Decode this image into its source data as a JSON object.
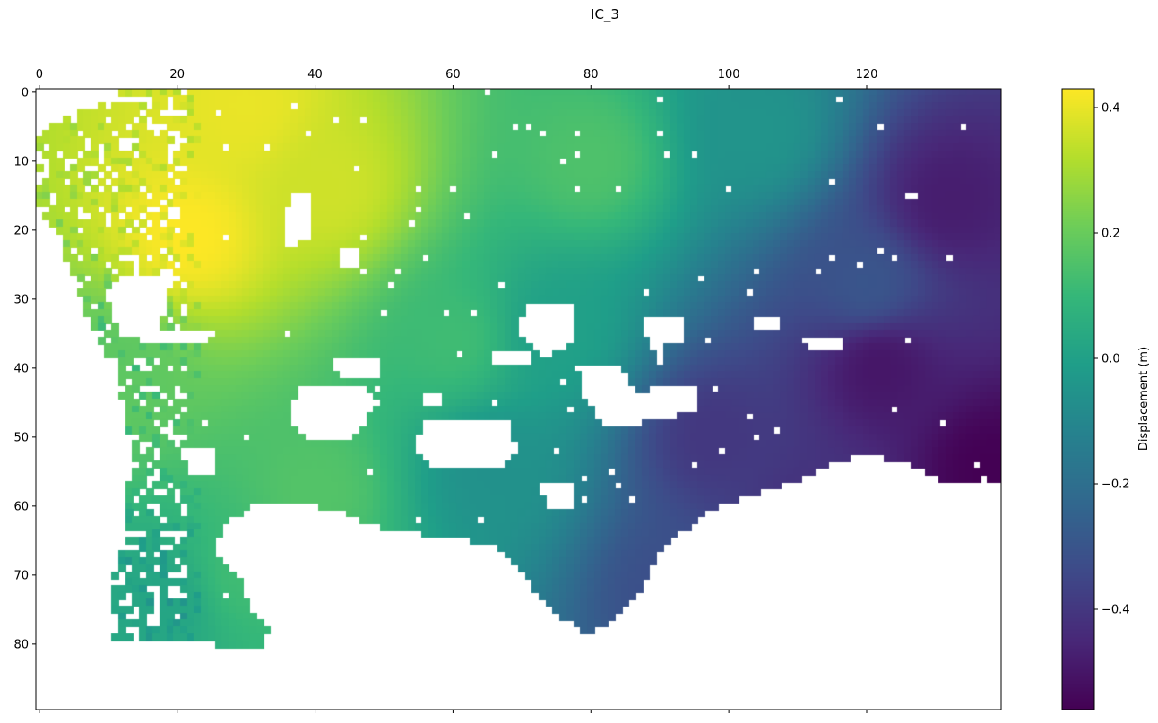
{
  "chart_data": {
    "type": "heatmap",
    "title": "IC_3",
    "colorbar": {
      "label": "Displacement (m)",
      "range": [
        -0.56,
        0.43
      ],
      "ticks": [
        0.4,
        0.2,
        0.0,
        -0.2,
        -0.4
      ],
      "tick_labels": [
        "0.4",
        "0.2",
        "0.0",
        "−0.2",
        "−0.4"
      ],
      "colormap": "viridis"
    },
    "x_axis": {
      "position": "top",
      "range": [
        -0.5,
        139.5
      ],
      "ticks": [
        0,
        20,
        40,
        60,
        80,
        100,
        120
      ],
      "tick_labels": [
        "0",
        "20",
        "40",
        "60",
        "80",
        "100",
        "120"
      ]
    },
    "y_axis": {
      "inverted": true,
      "range": [
        -0.5,
        89.5
      ],
      "ticks": [
        0,
        10,
        20,
        30,
        40,
        50,
        60,
        70,
        80
      ],
      "tick_labels": [
        "0",
        "10",
        "20",
        "30",
        "40",
        "50",
        "60",
        "70",
        "80"
      ]
    },
    "grid_size": {
      "columns": 140,
      "rows": 90
    },
    "field_centers": [
      {
        "col": 22,
        "row": 21,
        "value": 0.43
      },
      {
        "col": 30,
        "row": 2,
        "value": 0.4
      },
      {
        "col": 42,
        "row": 14,
        "value": 0.36
      },
      {
        "col": 12,
        "row": 40,
        "value": 0.18
      },
      {
        "col": 18,
        "row": 74,
        "value": 0.02
      },
      {
        "col": 132,
        "row": 16,
        "value": -0.48
      },
      {
        "col": 122,
        "row": 40,
        "value": -0.5
      },
      {
        "col": 138,
        "row": 55,
        "value": -0.56
      },
      {
        "col": 98,
        "row": 50,
        "value": -0.4
      },
      {
        "col": 112,
        "row": 62,
        "value": -0.42
      },
      {
        "col": 92,
        "row": 72,
        "value": -0.32
      },
      {
        "col": 80,
        "row": 10,
        "value": 0.15
      },
      {
        "col": 104,
        "row": 6,
        "value": -0.05
      },
      {
        "col": 66,
        "row": 55,
        "value": -0.06
      },
      {
        "col": 60,
        "row": 36,
        "value": 0.12
      },
      {
        "col": 40,
        "row": 58,
        "value": 0.16
      },
      {
        "col": 30,
        "row": 70,
        "value": 0.12
      },
      {
        "col": 75,
        "row": 35,
        "value": 0.0
      },
      {
        "col": 120,
        "row": 28,
        "value": -0.3
      }
    ],
    "valid_region_polygon": [
      [
        13,
        0
      ],
      [
        140,
        0
      ],
      [
        140,
        57
      ],
      [
        132,
        57
      ],
      [
        126,
        54
      ],
      [
        120,
        53
      ],
      [
        114,
        55
      ],
      [
        110,
        57
      ],
      [
        104,
        59
      ],
      [
        98,
        61
      ],
      [
        94,
        64
      ],
      [
        90,
        68
      ],
      [
        88,
        72
      ],
      [
        85,
        76
      ],
      [
        83,
        78
      ],
      [
        80,
        79
      ],
      [
        77,
        77
      ],
      [
        74,
        75
      ],
      [
        72,
        72
      ],
      [
        70,
        69
      ],
      [
        68,
        67
      ],
      [
        66,
        66
      ],
      [
        60,
        65
      ],
      [
        52,
        64
      ],
      [
        48,
        63
      ],
      [
        44,
        61
      ],
      [
        38,
        60
      ],
      [
        32,
        60
      ],
      [
        29,
        62
      ],
      [
        27,
        64
      ],
      [
        26,
        67
      ],
      [
        30,
        72
      ],
      [
        31,
        75
      ],
      [
        34,
        78
      ],
      [
        33,
        81
      ],
      [
        28,
        81
      ],
      [
        24,
        80
      ],
      [
        18,
        80
      ],
      [
        11,
        80
      ],
      [
        11,
        76
      ],
      [
        11,
        69
      ],
      [
        13,
        66
      ],
      [
        13,
        60
      ],
      [
        14,
        54
      ],
      [
        13,
        48
      ],
      [
        12,
        42
      ],
      [
        10,
        38
      ],
      [
        8,
        34
      ],
      [
        6,
        28
      ],
      [
        4,
        24
      ],
      [
        2,
        20
      ],
      [
        0,
        16
      ],
      [
        0,
        6
      ],
      [
        4,
        4
      ],
      [
        8,
        3
      ],
      [
        12,
        1
      ]
    ],
    "missing_regions": [
      [
        [
          37,
          15
        ],
        [
          40,
          15
        ],
        [
          40,
          22
        ],
        [
          36,
          23
        ],
        [
          36,
          19
        ]
      ],
      [
        [
          44,
          23
        ],
        [
          47,
          23
        ],
        [
          47,
          26
        ],
        [
          44,
          26
        ]
      ],
      [
        [
          12,
          27
        ],
        [
          19,
          27
        ],
        [
          19,
          33
        ],
        [
          16,
          36
        ],
        [
          12,
          36
        ],
        [
          11,
          31
        ]
      ],
      [
        [
          14,
          35
        ],
        [
          26,
          35
        ],
        [
          25,
          37
        ],
        [
          15,
          37
        ]
      ],
      [
        [
          43,
          39
        ],
        [
          50,
          39
        ],
        [
          50,
          42
        ],
        [
          44,
          42
        ]
      ],
      [
        [
          38,
          43
        ],
        [
          47,
          43
        ],
        [
          50,
          45
        ],
        [
          46,
          51
        ],
        [
          39,
          51
        ],
        [
          37,
          48
        ]
      ],
      [
        [
          56,
          48
        ],
        [
          69,
          48
        ],
        [
          70,
          53
        ],
        [
          67,
          55
        ],
        [
          57,
          55
        ],
        [
          55,
          52
        ]
      ],
      [
        [
          56,
          44
        ],
        [
          59,
          44
        ],
        [
          59,
          46
        ],
        [
          56,
          46
        ]
      ],
      [
        [
          71,
          31
        ],
        [
          78,
          31
        ],
        [
          78,
          37
        ],
        [
          74,
          39
        ],
        [
          70,
          36
        ]
      ],
      [
        [
          66,
          38
        ],
        [
          72,
          38
        ],
        [
          72,
          40
        ],
        [
          66,
          40
        ]
      ],
      [
        [
          78,
          40
        ],
        [
          85,
          40
        ],
        [
          87,
          44
        ],
        [
          91,
          43
        ],
        [
          96,
          43
        ],
        [
          96,
          47
        ],
        [
          90,
          48
        ],
        [
          86,
          49
        ],
        [
          82,
          49
        ],
        [
          80,
          45
        ]
      ],
      [
        [
          88,
          33
        ],
        [
          94,
          33
        ],
        [
          94,
          37
        ],
        [
          89,
          38
        ]
      ],
      [
        [
          111,
          36
        ],
        [
          117,
          36
        ],
        [
          117,
          38
        ],
        [
          112,
          38
        ]
      ],
      [
        [
          104,
          33
        ],
        [
          108,
          33
        ],
        [
          108,
          35
        ],
        [
          104,
          35
        ]
      ],
      [
        [
          73,
          57
        ],
        [
          78,
          57
        ],
        [
          78,
          61
        ],
        [
          74,
          61
        ]
      ],
      [
        [
          21,
          52
        ],
        [
          26,
          52
        ],
        [
          26,
          56
        ],
        [
          22,
          56
        ]
      ]
    ]
  }
}
